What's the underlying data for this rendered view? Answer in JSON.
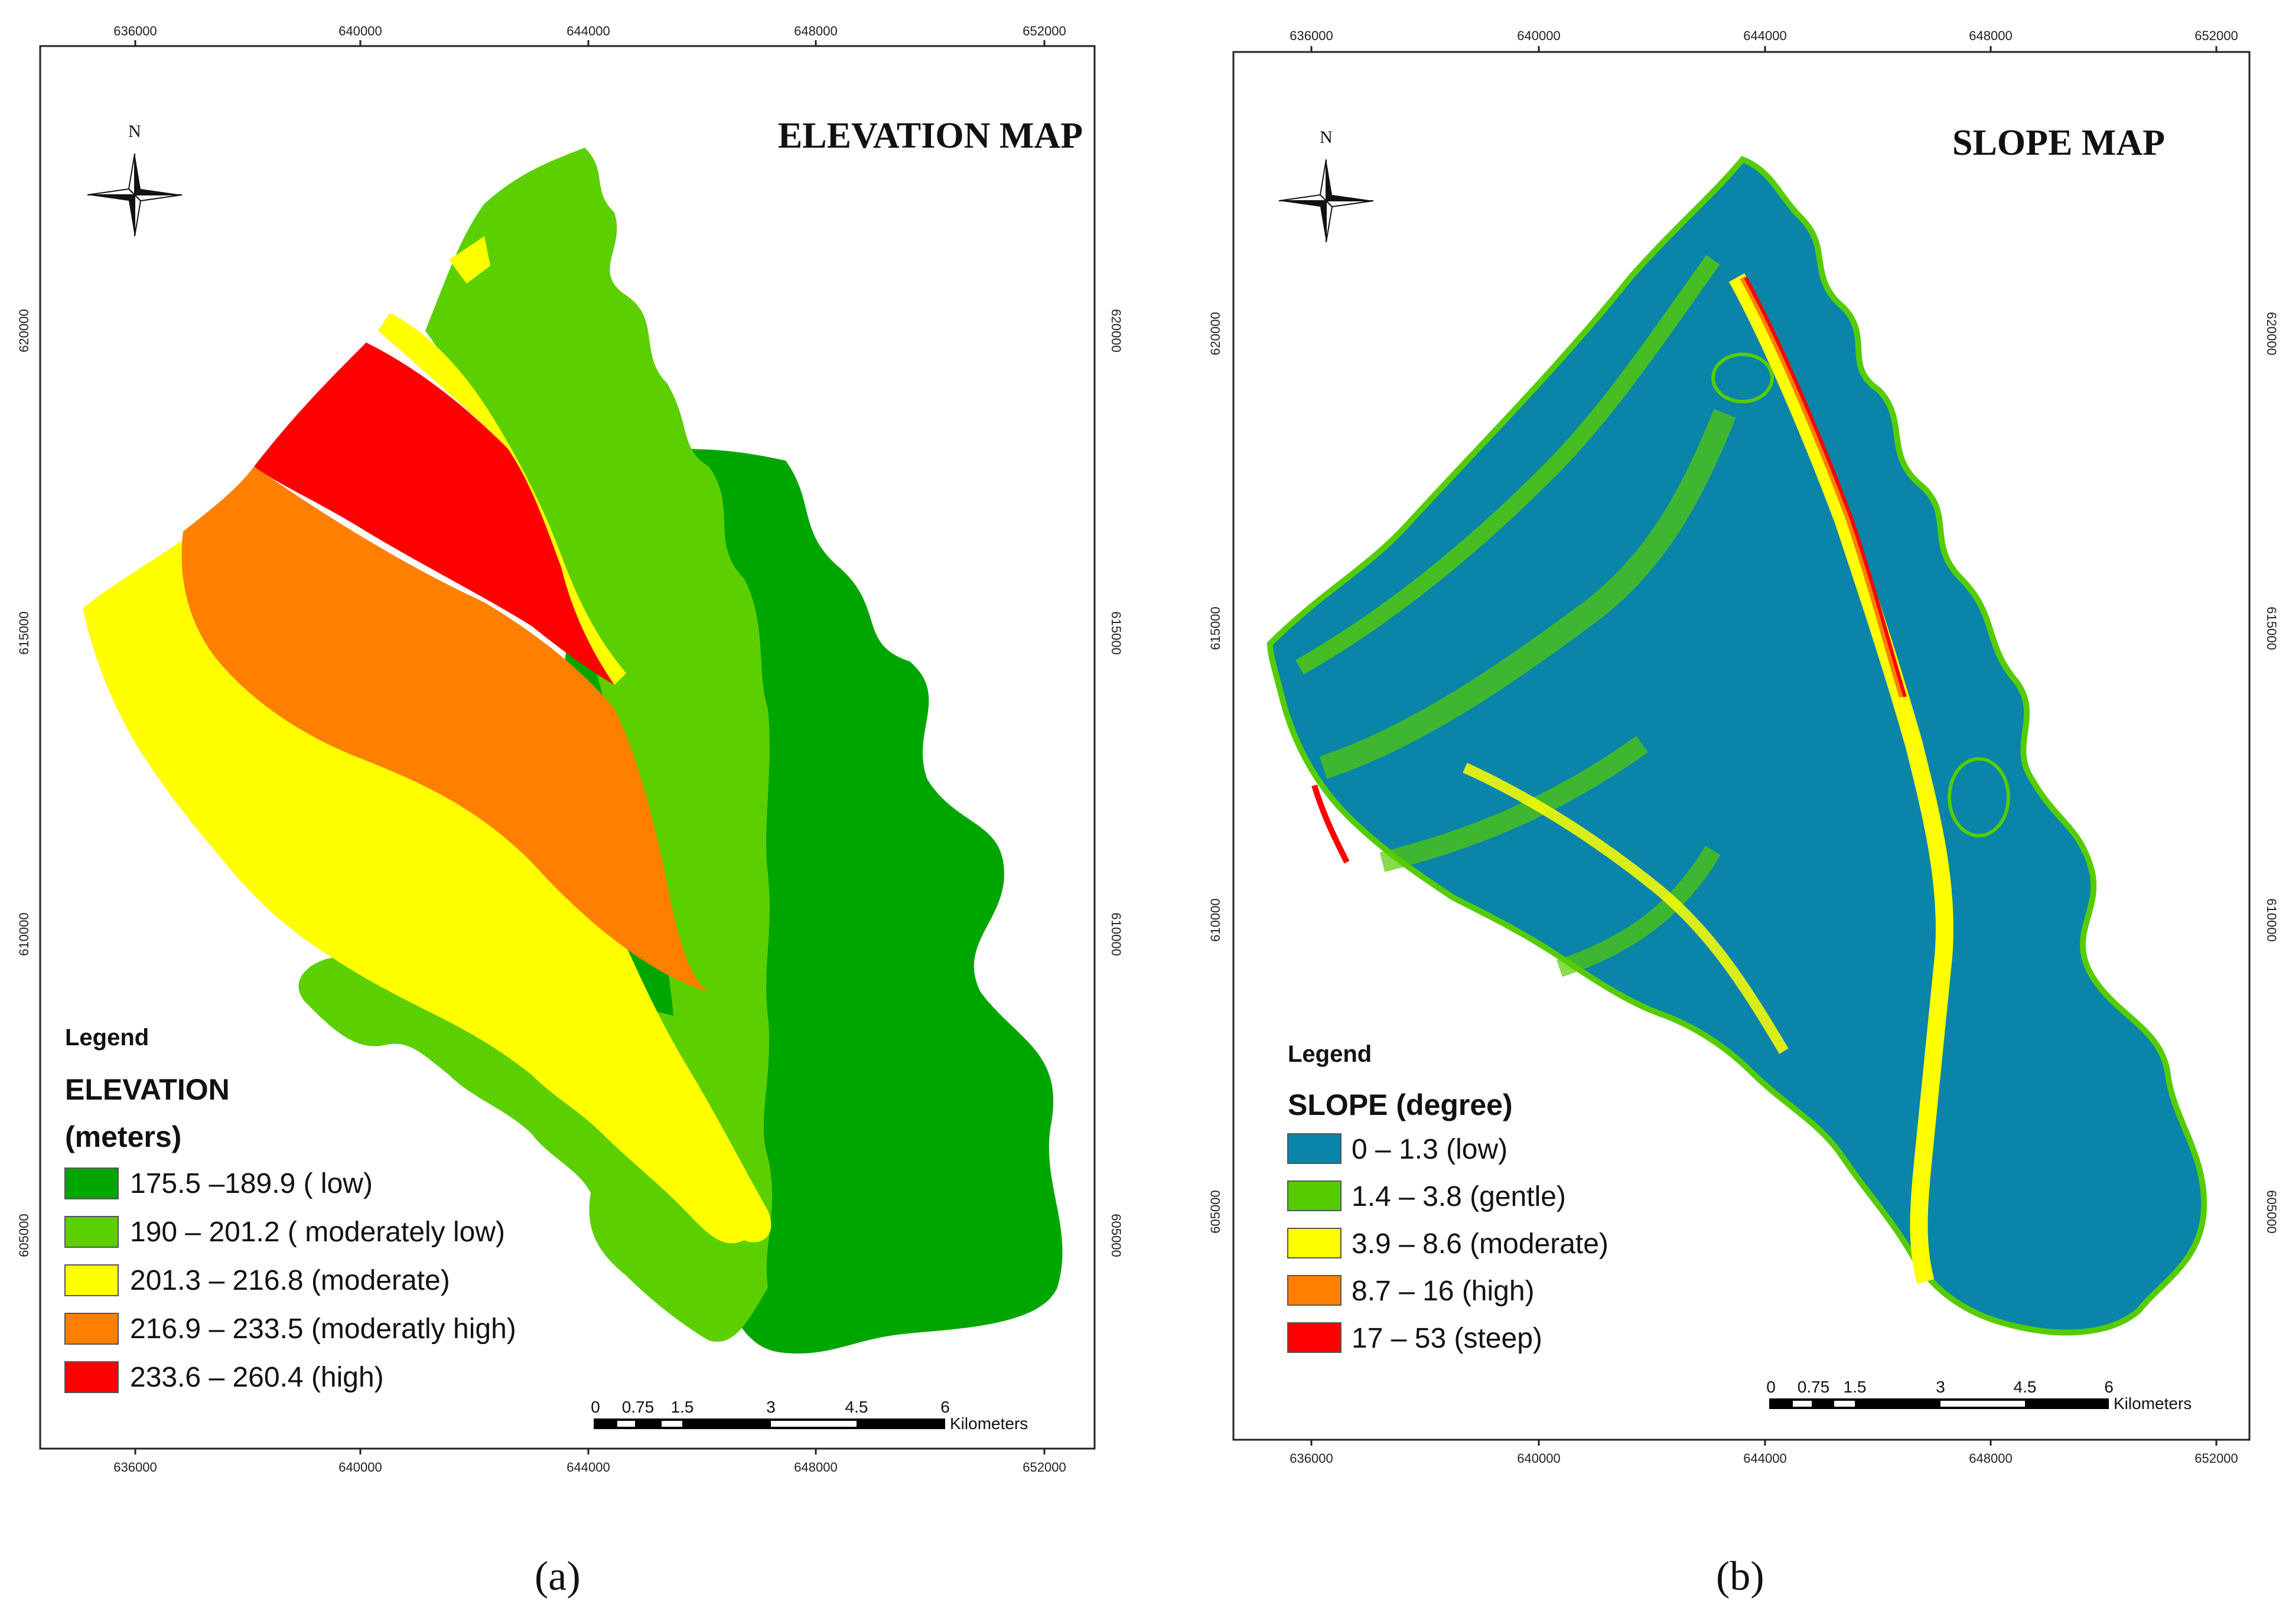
{
  "panels": [
    {
      "id": "elevation",
      "title": "ELEVATION MAP",
      "caption": "(a)",
      "x_ticks": [
        "636000",
        "640000",
        "644000",
        "648000",
        "652000"
      ],
      "y_ticks": [
        "620000",
        "615000",
        "610000",
        "605000"
      ],
      "north": "N",
      "legend": {
        "heading": "Legend",
        "title_lines": [
          "ELEVATION",
          "(meters)"
        ],
        "items": [
          {
            "label": "175.5 –189.9 ( low)",
            "color": "#00a600"
          },
          {
            "label": "190 – 201.2 ( moderately low)",
            "color": "#5ccf00"
          },
          {
            "label": "201.3 – 216.8 (moderate)",
            "color": "#ffff00"
          },
          {
            "label": "216.9 – 233.5 (moderatly high)",
            "color": "#ff8000"
          },
          {
            "label": "233.6 – 260.4 (high)",
            "color": "#ff0000"
          }
        ]
      },
      "scalebar": {
        "ticks": [
          "0",
          "0.75",
          "1.5",
          "3",
          "4.5",
          "6"
        ],
        "unit": "Kilometers"
      }
    },
    {
      "id": "slope",
      "title": "SLOPE MAP",
      "caption": "(b)",
      "x_ticks": [
        "636000",
        "640000",
        "644000",
        "648000",
        "652000"
      ],
      "y_ticks": [
        "620000",
        "615000",
        "610000",
        "605000"
      ],
      "north": "N",
      "legend": {
        "heading": "Legend",
        "title_lines": [
          "SLOPE (degree)"
        ],
        "items": [
          {
            "label": "0 – 1.3 (low)",
            "color": "#0a84a8"
          },
          {
            "label": "1.4 – 3.8 (gentle)",
            "color": "#55cc00"
          },
          {
            "label": "3.9 – 8.6 (moderate)",
            "color": "#ffff00"
          },
          {
            "label": "8.7 – 16 (high)",
            "color": "#ff8000"
          },
          {
            "label": "17 – 53 (steep)",
            "color": "#ff0000"
          }
        ]
      },
      "scalebar": {
        "ticks": [
          "0",
          "0.75",
          "1.5",
          "3",
          "4.5",
          "6"
        ],
        "unit": "Kilometers"
      }
    }
  ]
}
